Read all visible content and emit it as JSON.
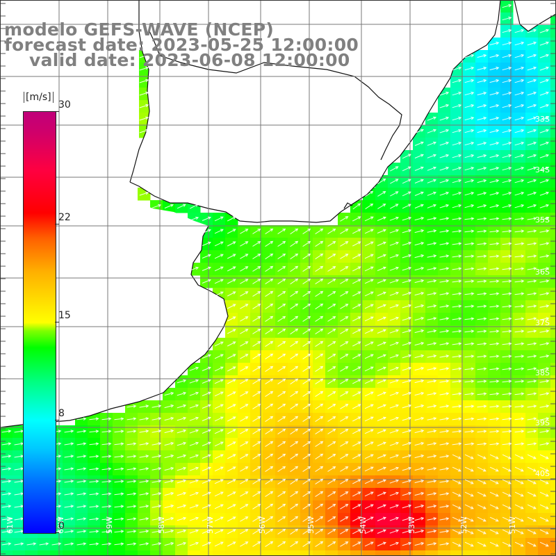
{
  "title": {
    "line1": "modelo GEFS-WAVE (NCEP)",
    "line2": "forecast date: 2023-05-25 12:00:00",
    "line3": "valid date: 2023-06-08 12:00:00"
  },
  "colorbar": {
    "unit": "[m/s]",
    "ticks": [
      {
        "value": 30,
        "label": "30"
      },
      {
        "value": 22,
        "label": "22"
      },
      {
        "value": 15,
        "label": "15"
      },
      {
        "value": 8,
        "label": "8"
      },
      {
        "value": 0,
        "label": "0"
      }
    ],
    "min": 0,
    "max": 30
  },
  "map": {
    "lat_labels": [
      "33S",
      "34S",
      "35S",
      "36S",
      "37S",
      "38S",
      "39S",
      "40S"
    ],
    "lon_labels": [
      "61W",
      "60W",
      "59W",
      "58W",
      "57W",
      "56W",
      "55W",
      "54W",
      "53W",
      "52W",
      "51W"
    ],
    "wind_field": "west-to-southwest wind, strongest (18-24 m/s) in the southeast, weakest (5-9 m/s) near the northeastern coast",
    "colors": {
      "land": "#ffffff",
      "grid": "#777777",
      "coast": "#111111",
      "arrow": "#ffffff",
      "title": "#808080"
    }
  }
}
